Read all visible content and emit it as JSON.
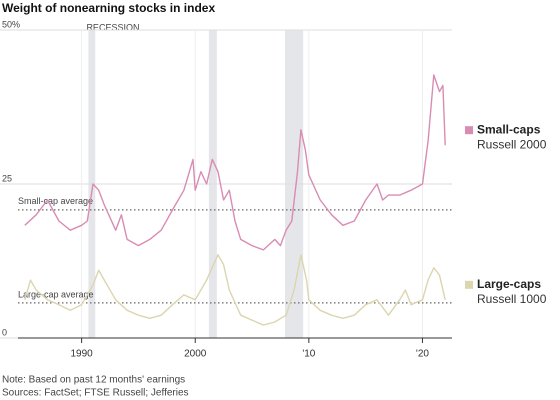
{
  "chart_data": {
    "type": "line",
    "title": "Weight of nonearning stocks in index",
    "notes": [
      "Note: Based on past 12 months' earnings",
      "Sources: FactSet; FTSE Russell; Jefferies"
    ],
    "xlim": [
      1984.4,
      2022.6
    ],
    "xticks": [
      1990,
      2000,
      {
        "value": 2010,
        "label": "'10"
      },
      {
        "value": 2020,
        "label": "'20"
      }
    ],
    "ylim": [
      0,
      50
    ],
    "yticks": [
      0,
      25,
      {
        "value": 50,
        "label": "50%"
      }
    ],
    "grid": true,
    "recession_label": "RECESSION",
    "recessions": [
      {
        "start": 1990.6,
        "end": 1991.2
      },
      {
        "start": 2001.2,
        "end": 2001.9
      },
      {
        "start": 2007.9,
        "end": 2009.5
      }
    ],
    "recession_color": "#e5e6ea",
    "averages": [
      {
        "label": "Small-cap average",
        "value": 20.8
      },
      {
        "label": "Large-cap average",
        "value": 5.7
      }
    ],
    "series": [
      {
        "name": "Small-caps",
        "index": "Russell 2000",
        "color": "#d98cb3",
        "x": [
          1985,
          1986,
          1987,
          1988,
          1989,
          1990,
          1990.5,
          1991,
          1991.5,
          1992,
          1993,
          1993.5,
          1994,
          1995,
          1996,
          1997,
          1998,
          1999,
          1999.8,
          2000,
          2000.5,
          2001,
          2001.5,
          2002,
          2002.5,
          2003,
          2003.5,
          2004,
          2005,
          2006,
          2007,
          2007.5,
          2008,
          2008.5,
          2009,
          2009.3,
          2009.7,
          2010,
          2011,
          2012,
          2013,
          2014,
          2015,
          2016,
          2016.5,
          2017,
          2018,
          2019,
          2020,
          2020.5,
          2021,
          2021.5,
          2021.8,
          2022
        ],
        "values": [
          18.3,
          20,
          22.4,
          19,
          17.5,
          18.3,
          19,
          25,
          24,
          21.6,
          17.5,
          20,
          16,
          15,
          16,
          17.5,
          20.8,
          24,
          29,
          24,
          27,
          25,
          29,
          27,
          22.4,
          24,
          19,
          16,
          15,
          14.3,
          16,
          15,
          17.5,
          19,
          27,
          33.8,
          30.5,
          26.5,
          22.4,
          20,
          18.3,
          19,
          22.4,
          25,
          22.4,
          23.2,
          23.2,
          24,
          25,
          32,
          42.7,
          40,
          41,
          31.3
        ]
      },
      {
        "name": "Large-caps",
        "index": "Russell 1000",
        "color": "#dcd5ae",
        "x": [
          1985,
          1985.5,
          1986,
          1987,
          1988,
          1989,
          1990,
          1991,
          1991.5,
          1992,
          1993,
          1994,
          1995,
          1996,
          1997,
          1998,
          1999,
          2000,
          2001,
          2002,
          2002.5,
          2003,
          2004,
          2005,
          2006,
          2007,
          2008,
          2008.7,
          2009.3,
          2009.8,
          2010,
          2011,
          2012,
          2013,
          2014,
          2015,
          2016,
          2017,
          2018,
          2018.5,
          2019,
          2020,
          2020.5,
          2021,
          2021.5,
          2022
        ],
        "values": [
          6.2,
          9.4,
          7.8,
          6.2,
          5.4,
          4.5,
          5.4,
          8.6,
          11,
          9.4,
          6.2,
          4.5,
          3.7,
          3.2,
          3.7,
          5.4,
          7,
          6.2,
          9.4,
          13.5,
          11.9,
          7.8,
          3.7,
          2.9,
          2.1,
          2.6,
          3.7,
          7.8,
          13.5,
          9.4,
          6.2,
          4.5,
          3.7,
          3.2,
          3.7,
          5.4,
          6.2,
          3.7,
          6.2,
          7.8,
          5.4,
          6.2,
          9.4,
          11.4,
          10.2,
          6.2
        ]
      }
    ]
  }
}
